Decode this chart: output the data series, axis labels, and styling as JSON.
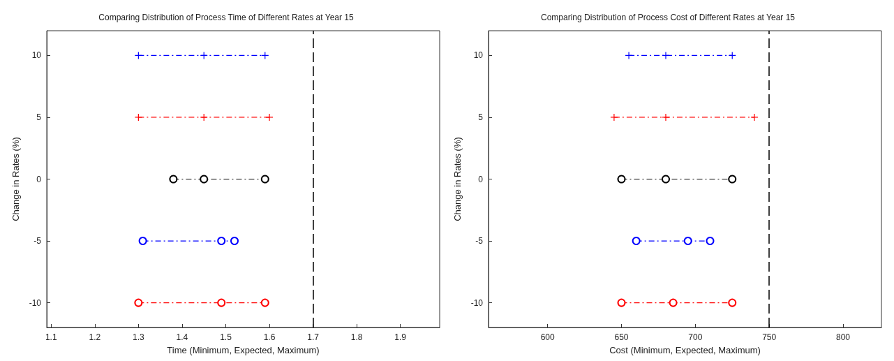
{
  "chart_data": [
    {
      "type": "line",
      "title": "Comparing Distribution of Process Time of Different Rates at Year 15",
      "xlabel": "Time (Minimum, Expected, Maximum)",
      "ylabel": "Change in Rates (%)",
      "xlim": [
        1.09,
        1.99
      ],
      "xticks": [
        1.1,
        1.2,
        1.3,
        1.4,
        1.5,
        1.6,
        1.7,
        1.8,
        1.9
      ],
      "ylim": [
        -12,
        12
      ],
      "yticks": [
        -10,
        -5,
        0,
        5,
        10
      ],
      "grid": false,
      "line_style": "dashed",
      "ref_lines": [
        {
          "axis": "x",
          "value": 1.7,
          "color": "#000000",
          "line_style": "dashed"
        }
      ],
      "series": [
        {
          "color": "#0000ff",
          "marker": "cross",
          "x": [
            1.3,
            1.45,
            1.59
          ],
          "values": [
            10,
            10,
            10
          ]
        },
        {
          "color": "#ff0000",
          "marker": "cross",
          "x": [
            1.3,
            1.45,
            1.6
          ],
          "values": [
            5,
            5,
            5
          ]
        },
        {
          "color": "#000000",
          "marker": "circle",
          "x": [
            1.38,
            1.45,
            1.59
          ],
          "values": [
            0,
            0,
            0
          ]
        },
        {
          "color": "#0000ff",
          "marker": "circle",
          "x": [
            1.31,
            1.49,
            1.52
          ],
          "values": [
            -5,
            -5,
            -5
          ]
        },
        {
          "color": "#ff0000",
          "marker": "circle",
          "x": [
            1.3,
            1.49,
            1.59
          ],
          "values": [
            -10,
            -10,
            -10
          ]
        }
      ]
    },
    {
      "type": "line",
      "title": "Comparing Distribution of Process Cost of Different Rates at Year 15",
      "xlabel": "Cost (Minimum, Expected, Maximum)",
      "ylabel": "Change in Rates (%)",
      "xlim": [
        560,
        826
      ],
      "xticks": [
        600,
        650,
        700,
        750,
        800
      ],
      "ylim": [
        -12,
        12
      ],
      "yticks": [
        -10,
        -5,
        0,
        5,
        10
      ],
      "grid": false,
      "line_style": "dashed",
      "ref_lines": [
        {
          "axis": "x",
          "value": 750,
          "color": "#000000",
          "line_style": "dashed"
        }
      ],
      "series": [
        {
          "color": "#0000ff",
          "marker": "cross",
          "x": [
            655,
            680,
            725
          ],
          "values": [
            10,
            10,
            10
          ]
        },
        {
          "color": "#ff0000",
          "marker": "cross",
          "x": [
            645,
            680,
            740
          ],
          "values": [
            5,
            5,
            5
          ]
        },
        {
          "color": "#000000",
          "marker": "circle",
          "x": [
            650,
            680,
            725
          ],
          "values": [
            0,
            0,
            0
          ]
        },
        {
          "color": "#0000ff",
          "marker": "circle",
          "x": [
            660,
            695,
            710
          ],
          "values": [
            -5,
            -5,
            -5
          ]
        },
        {
          "color": "#ff0000",
          "marker": "circle",
          "x": [
            650,
            685,
            725
          ],
          "values": [
            -10,
            -10,
            -10
          ]
        }
      ]
    }
  ]
}
